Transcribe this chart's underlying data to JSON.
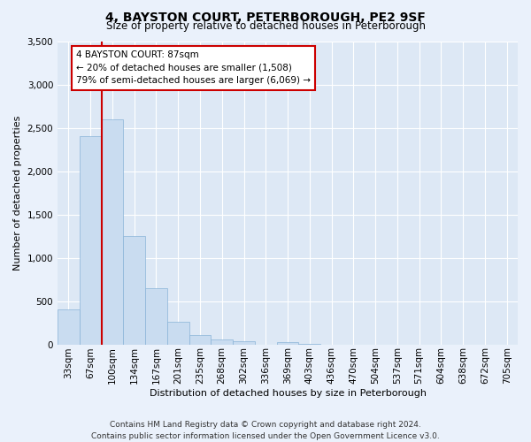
{
  "title": "4, BAYSTON COURT, PETERBOROUGH, PE2 9SF",
  "subtitle": "Size of property relative to detached houses in Peterborough",
  "xlabel": "Distribution of detached houses by size in Peterborough",
  "ylabel": "Number of detached properties",
  "bar_labels": [
    "33sqm",
    "67sqm",
    "100sqm",
    "134sqm",
    "167sqm",
    "201sqm",
    "235sqm",
    "268sqm",
    "302sqm",
    "336sqm",
    "369sqm",
    "403sqm",
    "436sqm",
    "470sqm",
    "504sqm",
    "537sqm",
    "571sqm",
    "604sqm",
    "638sqm",
    "672sqm",
    "705sqm"
  ],
  "bar_values": [
    400,
    2400,
    2600,
    1250,
    650,
    260,
    105,
    55,
    40,
    0,
    30,
    5,
    0,
    0,
    0,
    0,
    0,
    0,
    0,
    0,
    0
  ],
  "bar_color": "#c9dcf0",
  "bar_edgecolor": "#8ab4d8",
  "vline_color": "#cc0000",
  "ylim": [
    0,
    3500
  ],
  "yticks": [
    0,
    500,
    1000,
    1500,
    2000,
    2500,
    3000,
    3500
  ],
  "annotation_line1": "4 BAYSTON COURT: 87sqm",
  "annotation_line2": "← 20% of detached houses are smaller (1,508)",
  "annotation_line3": "79% of semi-detached houses are larger (6,069) →",
  "annotation_box_edgecolor": "#cc0000",
  "footer_line1": "Contains HM Land Registry data © Crown copyright and database right 2024.",
  "footer_line2": "Contains public sector information licensed under the Open Government Licence v3.0.",
  "bg_color": "#eaf1fb",
  "plot_bg_color": "#dde8f5",
  "grid_color": "#ffffff",
  "title_fontsize": 10,
  "subtitle_fontsize": 8.5,
  "xlabel_fontsize": 8,
  "ylabel_fontsize": 8,
  "tick_fontsize": 7.5,
  "annot_fontsize": 7.5,
  "footer_fontsize": 6.5
}
